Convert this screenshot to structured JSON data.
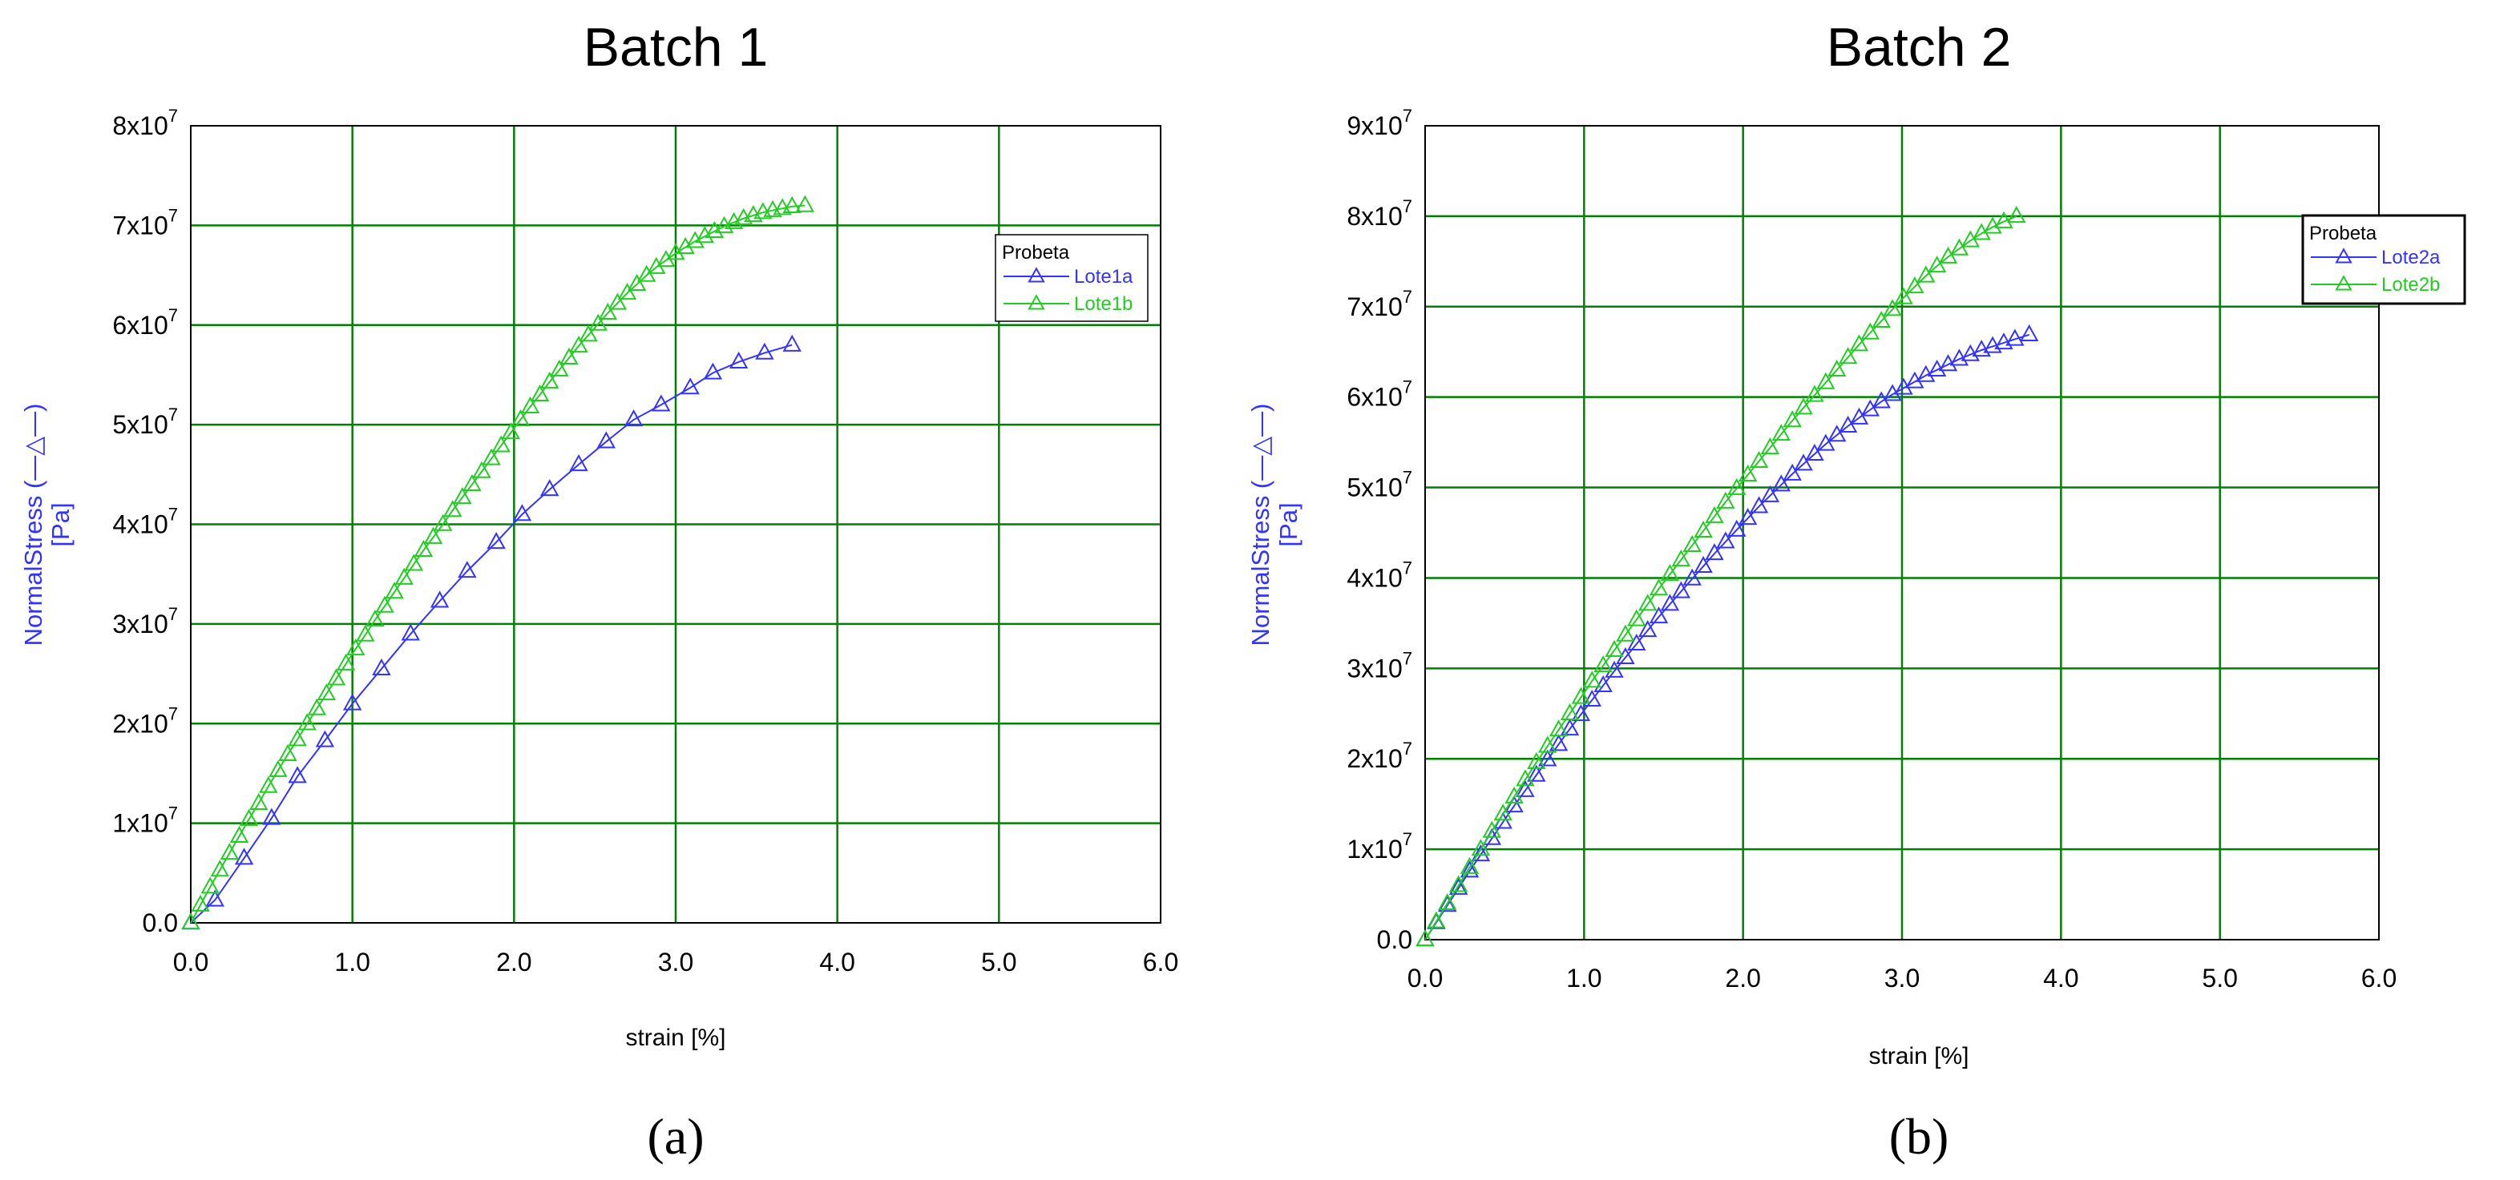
{
  "chart_data": [
    {
      "type": "line",
      "title": "Batch 1",
      "xlabel": "strain [%]",
      "ylabel_line1": "NormalStress (—△—)",
      "ylabel_line2": "[Pa]",
      "xlim": [
        0,
        6
      ],
      "ylim": [
        0,
        80000000
      ],
      "x_ticks": [
        "0.0",
        "1.0",
        "2.0",
        "3.0",
        "4.0",
        "5.0",
        "6.0"
      ],
      "y_ticks": [
        {
          "base": "0.0",
          "exp": ""
        },
        {
          "base": "1x10",
          "exp": "7"
        },
        {
          "base": "2x10",
          "exp": "7"
        },
        {
          "base": "3x10",
          "exp": "7"
        },
        {
          "base": "4x10",
          "exp": "7"
        },
        {
          "base": "5x10",
          "exp": "7"
        },
        {
          "base": "6x10",
          "exp": "7"
        },
        {
          "base": "7x10",
          "exp": "7"
        },
        {
          "base": "8x10",
          "exp": "7"
        }
      ],
      "grid": true,
      "legend": {
        "title": "Probeta",
        "placement": "right"
      },
      "caption": "(a)",
      "series": [
        {
          "name": "Lote1a",
          "color": "#3333ff",
          "x": [
            0.0,
            0.15,
            0.33,
            0.5,
            0.66,
            0.83,
            1.0,
            1.18,
            1.36,
            1.54,
            1.71,
            1.89,
            2.05,
            2.22,
            2.4,
            2.57,
            2.74,
            2.91,
            3.09,
            3.23,
            3.39,
            3.55,
            3.72
          ],
          "y": [
            0,
            2300000,
            6500000,
            10500000,
            14700000,
            18300000,
            22000000,
            25500000,
            29000000,
            32300000,
            35300000,
            38200000,
            41000000,
            43500000,
            46000000,
            48300000,
            50500000,
            52000000,
            53700000,
            55200000,
            56300000,
            57200000,
            58000000
          ]
        },
        {
          "name": "Lote1b",
          "color": "#22cc22",
          "x": [
            0.0,
            0.06,
            0.12,
            0.18,
            0.24,
            0.3,
            0.36,
            0.42,
            0.48,
            0.54,
            0.6,
            0.66,
            0.72,
            0.78,
            0.84,
            0.9,
            0.96,
            1.02,
            1.08,
            1.14,
            1.2,
            1.26,
            1.32,
            1.38,
            1.44,
            1.5,
            1.56,
            1.62,
            1.68,
            1.74,
            1.8,
            1.86,
            1.92,
            1.98,
            2.04,
            2.1,
            2.16,
            2.22,
            2.28,
            2.34,
            2.4,
            2.46,
            2.52,
            2.58,
            2.64,
            2.7,
            2.76,
            2.82,
            2.88,
            2.94,
            3.0,
            3.06,
            3.12,
            3.18,
            3.24,
            3.3,
            3.36,
            3.42,
            3.48,
            3.54,
            3.6,
            3.66,
            3.72,
            3.8
          ],
          "y": [
            0,
            1800000,
            3600000,
            5300000,
            7000000,
            8700000,
            10400000,
            12000000,
            13700000,
            15300000,
            16900000,
            18400000,
            20000000,
            21500000,
            23000000,
            24500000,
            26000000,
            27500000,
            28900000,
            30400000,
            31800000,
            33200000,
            34600000,
            36000000,
            37400000,
            38700000,
            40000000,
            41400000,
            42700000,
            44000000,
            45300000,
            46600000,
            47900000,
            49200000,
            50500000,
            51800000,
            53000000,
            54300000,
            55500000,
            56700000,
            57900000,
            59000000,
            60100000,
            61200000,
            62200000,
            63200000,
            64100000,
            65000000,
            65800000,
            66500000,
            67200000,
            67800000,
            68400000,
            68900000,
            69400000,
            69900000,
            70300000,
            70700000,
            71000000,
            71300000,
            71500000,
            71700000,
            71900000,
            72000000
          ]
        }
      ]
    },
    {
      "type": "line",
      "title": "Batch 2",
      "xlabel": "strain [%]",
      "ylabel_line1": "NormalStress (—△—)",
      "ylabel_line2": "[Pa]",
      "xlim": [
        0,
        6
      ],
      "ylim": [
        0,
        90000000
      ],
      "x_ticks": [
        "0.0",
        "1.0",
        "2.0",
        "3.0",
        "4.0",
        "5.0",
        "6.0"
      ],
      "y_ticks": [
        {
          "base": "0.0",
          "exp": ""
        },
        {
          "base": "1x10",
          "exp": "7"
        },
        {
          "base": "2x10",
          "exp": "7"
        },
        {
          "base": "3x10",
          "exp": "7"
        },
        {
          "base": "4x10",
          "exp": "7"
        },
        {
          "base": "5x10",
          "exp": "7"
        },
        {
          "base": "6x10",
          "exp": "7"
        },
        {
          "base": "7x10",
          "exp": "7"
        },
        {
          "base": "8x10",
          "exp": "7"
        },
        {
          "base": "9x10",
          "exp": "7"
        }
      ],
      "grid": true,
      "legend": {
        "title": "Probeta",
        "placement": "top-right"
      },
      "caption": "(b)",
      "series": [
        {
          "name": "Lote2a",
          "color": "#3333ff",
          "x": [
            0.0,
            0.07,
            0.14,
            0.21,
            0.28,
            0.35,
            0.42,
            0.49,
            0.56,
            0.63,
            0.7,
            0.77,
            0.84,
            0.91,
            0.98,
            1.05,
            1.12,
            1.19,
            1.26,
            1.33,
            1.4,
            1.47,
            1.54,
            1.61,
            1.68,
            1.75,
            1.82,
            1.89,
            1.96,
            2.03,
            2.1,
            2.17,
            2.24,
            2.31,
            2.38,
            2.45,
            2.52,
            2.59,
            2.66,
            2.73,
            2.8,
            2.87,
            2.94,
            3.01,
            3.08,
            3.15,
            3.22,
            3.29,
            3.36,
            3.43,
            3.5,
            3.57,
            3.64,
            3.71,
            3.8
          ],
          "y": [
            0,
            1900000,
            3800000,
            5700000,
            7600000,
            9400000,
            11200000,
            13000000,
            14800000,
            16500000,
            18200000,
            19900000,
            21600000,
            23300000,
            24900000,
            26500000,
            28100000,
            29700000,
            31200000,
            32700000,
            34200000,
            35700000,
            37100000,
            38500000,
            39900000,
            41300000,
            42700000,
            44000000,
            45300000,
            46600000,
            47900000,
            49100000,
            50300000,
            51500000,
            52600000,
            53700000,
            54800000,
            55800000,
            56800000,
            57700000,
            58600000,
            59500000,
            60300000,
            61000000,
            61700000,
            62400000,
            63000000,
            63600000,
            64200000,
            64700000,
            65200000,
            65600000,
            66000000,
            66400000,
            66900000
          ]
        },
        {
          "name": "Lote2b",
          "color": "#22cc22",
          "x": [
            0.0,
            0.07,
            0.14,
            0.21,
            0.28,
            0.35,
            0.42,
            0.49,
            0.56,
            0.63,
            0.7,
            0.77,
            0.84,
            0.91,
            0.98,
            1.05,
            1.12,
            1.19,
            1.26,
            1.33,
            1.4,
            1.47,
            1.54,
            1.61,
            1.68,
            1.75,
            1.82,
            1.89,
            1.96,
            2.03,
            2.1,
            2.17,
            2.24,
            2.31,
            2.38,
            2.45,
            2.52,
            2.59,
            2.66,
            2.73,
            2.8,
            2.87,
            2.94,
            3.01,
            3.08,
            3.15,
            3.22,
            3.29,
            3.36,
            3.43,
            3.5,
            3.57,
            3.64,
            3.72
          ],
          "y": [
            0,
            2000000,
            4000000,
            6000000,
            8000000,
            10000000,
            12000000,
            13900000,
            15800000,
            17700000,
            19600000,
            21400000,
            23200000,
            25000000,
            26800000,
            28600000,
            30300000,
            32000000,
            33700000,
            35400000,
            37100000,
            38800000,
            40400000,
            42000000,
            43600000,
            45200000,
            46800000,
            48400000,
            49900000,
            51400000,
            52900000,
            54400000,
            55900000,
            57400000,
            58800000,
            60200000,
            61600000,
            63000000,
            64400000,
            65800000,
            67100000,
            68400000,
            69700000,
            71000000,
            72200000,
            73400000,
            74500000,
            75500000,
            76400000,
            77300000,
            78100000,
            78800000,
            79400000,
            80000000
          ]
        }
      ]
    }
  ]
}
